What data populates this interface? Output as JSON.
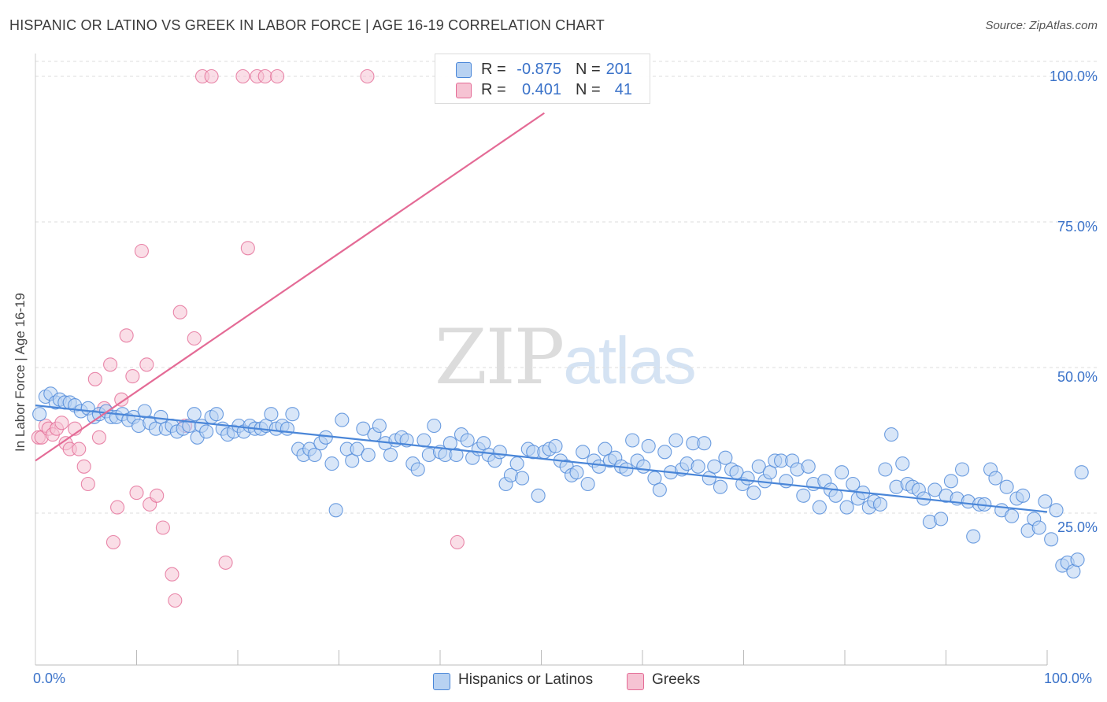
{
  "header": {
    "title": "HISPANIC OR LATINO VS GREEK IN LABOR FORCE | AGE 16-19 CORRELATION CHART",
    "source": "Source: ZipAtlas.com"
  },
  "watermark": {
    "zip": "ZIP",
    "atlas": "atlas"
  },
  "colors": {
    "blue": "#4a86d8",
    "blue_fill": "#b8d2f2",
    "pink": "#e46b96",
    "pink_fill": "#f6c3d3",
    "tick_text": "#3a72c9",
    "grid": "#dddddd"
  },
  "legend_top": [
    {
      "r_label": "R =",
      "r_value": "-0.875",
      "n_label": "N =",
      "n_value": "201",
      "swatch": "blue"
    },
    {
      "r_label": "R =",
      "r_value": "0.401",
      "n_label": "N =",
      "n_value": "41",
      "swatch": "pink"
    }
  ],
  "legend_bottom": [
    {
      "label": "Hispanics or Latinos",
      "swatch": "blue"
    },
    {
      "label": "Greeks",
      "swatch": "pink"
    }
  ],
  "chart_data": {
    "type": "scatter",
    "title": "HISPANIC OR LATINO VS GREEK IN LABOR FORCE | AGE 16-19 CORRELATION CHART",
    "xlabel": "",
    "ylabel": "In Labor Force | Age 16-19",
    "xlim": [
      0,
      100
    ],
    "ylim": [
      2,
      103
    ],
    "x_tick_labels": {
      "left": "0.0%",
      "right": "100.0%"
    },
    "y_ticks": [
      {
        "value": 25,
        "label": "25.0%"
      },
      {
        "value": 50,
        "label": "50.0%"
      },
      {
        "value": 75,
        "label": "75.0%"
      },
      {
        "value": 100,
        "label": "100.0%"
      }
    ],
    "grid": true,
    "legend_position": "bottom",
    "series": [
      {
        "name": "Hispanics or Latinos",
        "color": "blue",
        "trend": {
          "x0": 0,
          "y0": 43.5,
          "x1": 100,
          "y1": 25.2
        },
        "points": [
          [
            0.4,
            42
          ],
          [
            1,
            45
          ],
          [
            1.5,
            45.5
          ],
          [
            2,
            44
          ],
          [
            2.4,
            44.5
          ],
          [
            2.9,
            44
          ],
          [
            3.4,
            44
          ],
          [
            3.9,
            43.5
          ],
          [
            4.5,
            42.5
          ],
          [
            5.2,
            43
          ],
          [
            5.8,
            41.5
          ],
          [
            6.3,
            42
          ],
          [
            7,
            42.5
          ],
          [
            7.5,
            41.5
          ],
          [
            8,
            41.5
          ],
          [
            8.6,
            42
          ],
          [
            9.2,
            41
          ],
          [
            9.7,
            41.5
          ],
          [
            10.2,
            40
          ],
          [
            10.8,
            42.5
          ],
          [
            11.3,
            40.5
          ],
          [
            11.9,
            39.5
          ],
          [
            12.4,
            41.5
          ],
          [
            12.9,
            39.5
          ],
          [
            13.5,
            40
          ],
          [
            14,
            39
          ],
          [
            14.6,
            39.5
          ],
          [
            15.2,
            40
          ],
          [
            15.7,
            42
          ],
          [
            16,
            38
          ],
          [
            16.4,
            40
          ],
          [
            16.9,
            39
          ],
          [
            17.4,
            41.5
          ],
          [
            17.9,
            42
          ],
          [
            18.5,
            39.5
          ],
          [
            19,
            38.5
          ],
          [
            19.6,
            39
          ],
          [
            20.1,
            40
          ],
          [
            20.6,
            39
          ],
          [
            21.2,
            40
          ],
          [
            21.7,
            39.5
          ],
          [
            22.3,
            39.5
          ],
          [
            22.8,
            40
          ],
          [
            23.3,
            42
          ],
          [
            23.8,
            39.5
          ],
          [
            24.4,
            40
          ],
          [
            24.9,
            39.5
          ],
          [
            25.4,
            42
          ],
          [
            26,
            36
          ],
          [
            26.5,
            35
          ],
          [
            27.1,
            36
          ],
          [
            27.6,
            35
          ],
          [
            28.2,
            37
          ],
          [
            28.7,
            38
          ],
          [
            29.3,
            33.5
          ],
          [
            29.7,
            25.5
          ],
          [
            30.3,
            41
          ],
          [
            30.8,
            36
          ],
          [
            31.3,
            34
          ],
          [
            31.8,
            36
          ],
          [
            32.4,
            39.5
          ],
          [
            32.9,
            35
          ],
          [
            33.5,
            38.5
          ],
          [
            34,
            40
          ],
          [
            34.6,
            37
          ],
          [
            35.1,
            35
          ],
          [
            35.6,
            37.5
          ],
          [
            36.2,
            38
          ],
          [
            36.7,
            37.5
          ],
          [
            37.3,
            33.5
          ],
          [
            37.8,
            32.5
          ],
          [
            38.4,
            37.5
          ],
          [
            38.9,
            35
          ],
          [
            39.4,
            40
          ],
          [
            40,
            35.5
          ],
          [
            40.5,
            35
          ],
          [
            41,
            37
          ],
          [
            41.6,
            35
          ],
          [
            42.1,
            38.5
          ],
          [
            42.7,
            37.5
          ],
          [
            43.2,
            34.5
          ],
          [
            43.8,
            36
          ],
          [
            44.3,
            37
          ],
          [
            44.8,
            35
          ],
          [
            45.4,
            34
          ],
          [
            45.9,
            35.5
          ],
          [
            46.5,
            30
          ],
          [
            47,
            31.5
          ],
          [
            47.6,
            33.5
          ],
          [
            48.1,
            31
          ],
          [
            48.7,
            36
          ],
          [
            49.2,
            35.5
          ],
          [
            49.7,
            28
          ],
          [
            50.3,
            35.5
          ],
          [
            50.8,
            36
          ],
          [
            51.4,
            36.5
          ],
          [
            51.9,
            34
          ],
          [
            52.5,
            33
          ],
          [
            53,
            31.5
          ],
          [
            53.5,
            32
          ],
          [
            54.1,
            35.5
          ],
          [
            54.6,
            30
          ],
          [
            55.2,
            34
          ],
          [
            55.7,
            33
          ],
          [
            56.3,
            36
          ],
          [
            56.8,
            34
          ],
          [
            57.3,
            34.5
          ],
          [
            57.9,
            33
          ],
          [
            58.4,
            32.5
          ],
          [
            59,
            37.5
          ],
          [
            59.5,
            34
          ],
          [
            60.1,
            33
          ],
          [
            60.6,
            36.5
          ],
          [
            61.2,
            31
          ],
          [
            61.7,
            29
          ],
          [
            62.2,
            35.5
          ],
          [
            62.8,
            32
          ],
          [
            63.3,
            37.5
          ],
          [
            63.9,
            32.5
          ],
          [
            64.4,
            33.5
          ],
          [
            65,
            37
          ],
          [
            65.5,
            33
          ],
          [
            66.1,
            37
          ],
          [
            66.6,
            31
          ],
          [
            67.1,
            33
          ],
          [
            67.7,
            29.5
          ],
          [
            68.2,
            34.5
          ],
          [
            68.8,
            32.5
          ],
          [
            69.3,
            32
          ],
          [
            69.9,
            30
          ],
          [
            70.4,
            31
          ],
          [
            71,
            28.5
          ],
          [
            71.5,
            33
          ],
          [
            72.1,
            30.5
          ],
          [
            72.6,
            32
          ],
          [
            73.1,
            34
          ],
          [
            73.7,
            34
          ],
          [
            74.2,
            30.5
          ],
          [
            74.8,
            34
          ],
          [
            75.3,
            32.5
          ],
          [
            75.9,
            28
          ],
          [
            76.4,
            33
          ],
          [
            76.9,
            30
          ],
          [
            77.5,
            26
          ],
          [
            78,
            30.5
          ],
          [
            78.6,
            29
          ],
          [
            79.1,
            28
          ],
          [
            79.7,
            32
          ],
          [
            80.2,
            26
          ],
          [
            80.8,
            30
          ],
          [
            81.3,
            27.5
          ],
          [
            81.8,
            28.5
          ],
          [
            82.4,
            26
          ],
          [
            82.9,
            27
          ],
          [
            83.5,
            26.5
          ],
          [
            84,
            32.5
          ],
          [
            84.6,
            38.5
          ],
          [
            85.1,
            29.5
          ],
          [
            85.7,
            33.5
          ],
          [
            86.2,
            30
          ],
          [
            86.7,
            29.5
          ],
          [
            87.3,
            29
          ],
          [
            87.8,
            27.5
          ],
          [
            88.4,
            23.5
          ],
          [
            88.9,
            29
          ],
          [
            89.5,
            24
          ],
          [
            90,
            28
          ],
          [
            90.5,
            30.5
          ],
          [
            91.1,
            27.5
          ],
          [
            91.6,
            32.5
          ],
          [
            92.2,
            27
          ],
          [
            92.7,
            21
          ],
          [
            93.3,
            26.5
          ],
          [
            93.8,
            26.5
          ],
          [
            94.4,
            32.5
          ],
          [
            94.9,
            31
          ],
          [
            95.5,
            25.5
          ],
          [
            96,
            29.5
          ],
          [
            96.5,
            24.5
          ],
          [
            97,
            27.5
          ],
          [
            97.6,
            28
          ],
          [
            98.1,
            22
          ],
          [
            98.7,
            24
          ],
          [
            99.2,
            22.5
          ],
          [
            99.8,
            27
          ],
          [
            100.4,
            20.5
          ],
          [
            100.9,
            25.5
          ],
          [
            101.5,
            16
          ],
          [
            102,
            16.5
          ],
          [
            102.6,
            15
          ],
          [
            103,
            17
          ],
          [
            103.4,
            32
          ]
        ]
      },
      {
        "name": "Greeks",
        "color": "pink",
        "trend": {
          "x0": 0,
          "y0": 34,
          "x1": 50.3,
          "y1": 93.7
        },
        "points": [
          [
            0.3,
            38
          ],
          [
            0.6,
            38
          ],
          [
            1,
            40
          ],
          [
            1.3,
            39.5
          ],
          [
            1.7,
            38.5
          ],
          [
            2.1,
            39.5
          ],
          [
            2.6,
            40.5
          ],
          [
            3,
            37
          ],
          [
            3.4,
            36
          ],
          [
            3.9,
            39.5
          ],
          [
            4.3,
            36
          ],
          [
            4.8,
            33
          ],
          [
            5.2,
            30
          ],
          [
            5.9,
            48
          ],
          [
            6.3,
            38
          ],
          [
            6.8,
            43
          ],
          [
            7.4,
            50.5
          ],
          [
            7.7,
            20
          ],
          [
            8.1,
            26
          ],
          [
            8.5,
            44.5
          ],
          [
            9,
            55.5
          ],
          [
            9.6,
            48.5
          ],
          [
            10,
            28.5
          ],
          [
            10.5,
            70
          ],
          [
            11,
            50.5
          ],
          [
            11.3,
            26.5
          ],
          [
            12,
            28
          ],
          [
            12.6,
            22.5
          ],
          [
            13.5,
            14.5
          ],
          [
            13.8,
            10
          ],
          [
            14.3,
            59.5
          ],
          [
            14.8,
            40
          ],
          [
            15.7,
            55
          ],
          [
            16.5,
            100
          ],
          [
            17.4,
            100
          ],
          [
            18.8,
            16.5
          ],
          [
            20.5,
            100
          ],
          [
            21,
            70.5
          ],
          [
            21.9,
            100
          ],
          [
            22.7,
            100
          ],
          [
            23.9,
            100
          ],
          [
            32.8,
            100
          ],
          [
            41.7,
            20
          ]
        ]
      }
    ]
  }
}
